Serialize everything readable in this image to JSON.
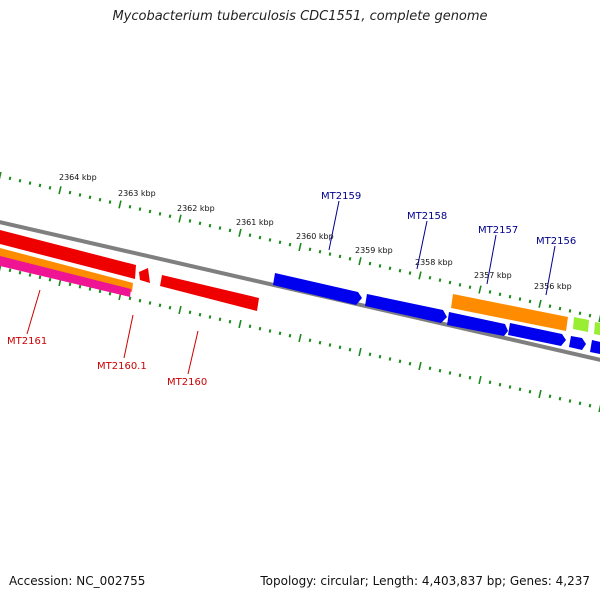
{
  "title": "Mycobacterium tuberculosis CDC1551, complete genome",
  "footer": {
    "accession": "Accession: NC_002755",
    "summary": "Topology: circular; Length: 4,403,837 bp; Genes: 4,237"
  },
  "colors": {
    "backbone": "#7f7f7f",
    "ticks": "#1a8a1a",
    "forward_label": "#00008b",
    "reverse_label": "#cc0000",
    "red": "#ee0000",
    "orange": "#ff8c00",
    "blue": "#0000ee",
    "green": "#99ee33",
    "magenta": "#ee1493"
  },
  "scale": {
    "unit": "kbp",
    "ticks": [
      {
        "kbp": 2364,
        "label": "2364 kbp"
      },
      {
        "kbp": 2363,
        "label": "2363 kbp"
      },
      {
        "kbp": 2362,
        "label": "2362 kbp"
      },
      {
        "kbp": 2361,
        "label": "2361 kbp"
      },
      {
        "kbp": 2360,
        "label": "2360 kbp"
      },
      {
        "kbp": 2359,
        "label": "2359 kbp"
      },
      {
        "kbp": 2358,
        "label": "2358 kbp"
      },
      {
        "kbp": 2357,
        "label": "2357 kbp"
      },
      {
        "kbp": 2356,
        "label": "2356 kbp"
      }
    ]
  },
  "gene_labels": {
    "forward": [
      "MT2159",
      "MT2158",
      "MT2157",
      "MT2156"
    ],
    "reverse": [
      "MT2161",
      "MT2160.1",
      "MT2160"
    ]
  }
}
